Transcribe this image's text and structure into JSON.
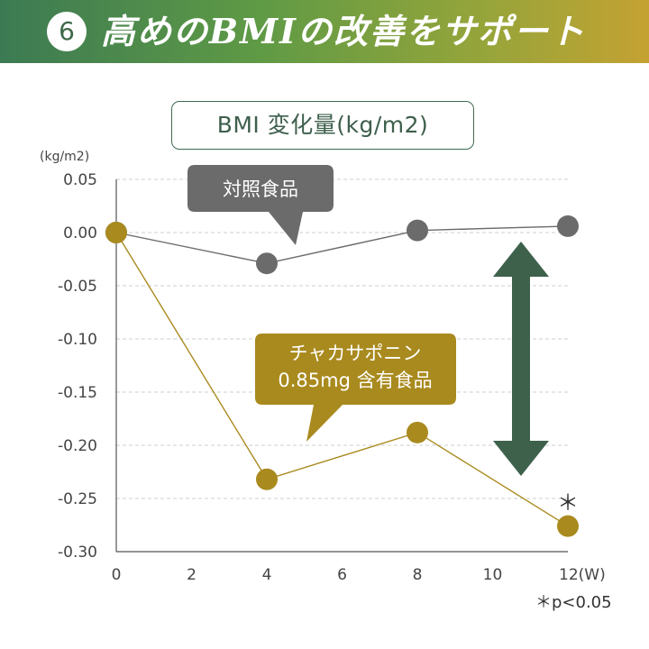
{
  "header": {
    "number": "6",
    "title": "高めのBMIの改善をサポート"
  },
  "chart_title": "BMI 変化量(kg/m2)",
  "footnote": "＊p<0.05",
  "colors": {
    "control": "#6b6b6b",
    "test": "#a98a1e",
    "arrow": "#3e614c",
    "banner_start": "#3c7a53",
    "banner_end": "#c4a232"
  },
  "chart_data": {
    "type": "line",
    "title": "BMI 変化量(kg/m2)",
    "ylabel": "(kg/m2)",
    "xlabel": "(W)",
    "x": [
      0,
      4,
      8,
      12
    ],
    "xticks": [
      0,
      2,
      4,
      6,
      8,
      10,
      12
    ],
    "xtick_labels": [
      "0",
      "2",
      "4",
      "6",
      "8",
      "10",
      "12(W)"
    ],
    "ylim": [
      -0.3,
      0.05
    ],
    "yticks": [
      0.05,
      0.0,
      -0.05,
      -0.1,
      -0.15,
      -0.2,
      -0.25,
      -0.3
    ],
    "ytick_labels": [
      "0.05",
      "0.00",
      "-0.05",
      "-0.10",
      "-0.15",
      "-0.20",
      "-0.25",
      "-0.30"
    ],
    "grid": true,
    "series": [
      {
        "name": "対照食品",
        "values": [
          0.0,
          -0.029,
          0.002,
          0.006
        ]
      },
      {
        "name": "チャカサポニン 0.85mg 含有食品",
        "values": [
          0.0,
          -0.232,
          -0.188,
          -0.276
        ]
      }
    ],
    "callouts": [
      {
        "lines": [
          "対照食品"
        ]
      },
      {
        "lines": [
          "チャカサポニン",
          "0.85mg 含有食品"
        ]
      }
    ],
    "significance_mark": "＊"
  }
}
